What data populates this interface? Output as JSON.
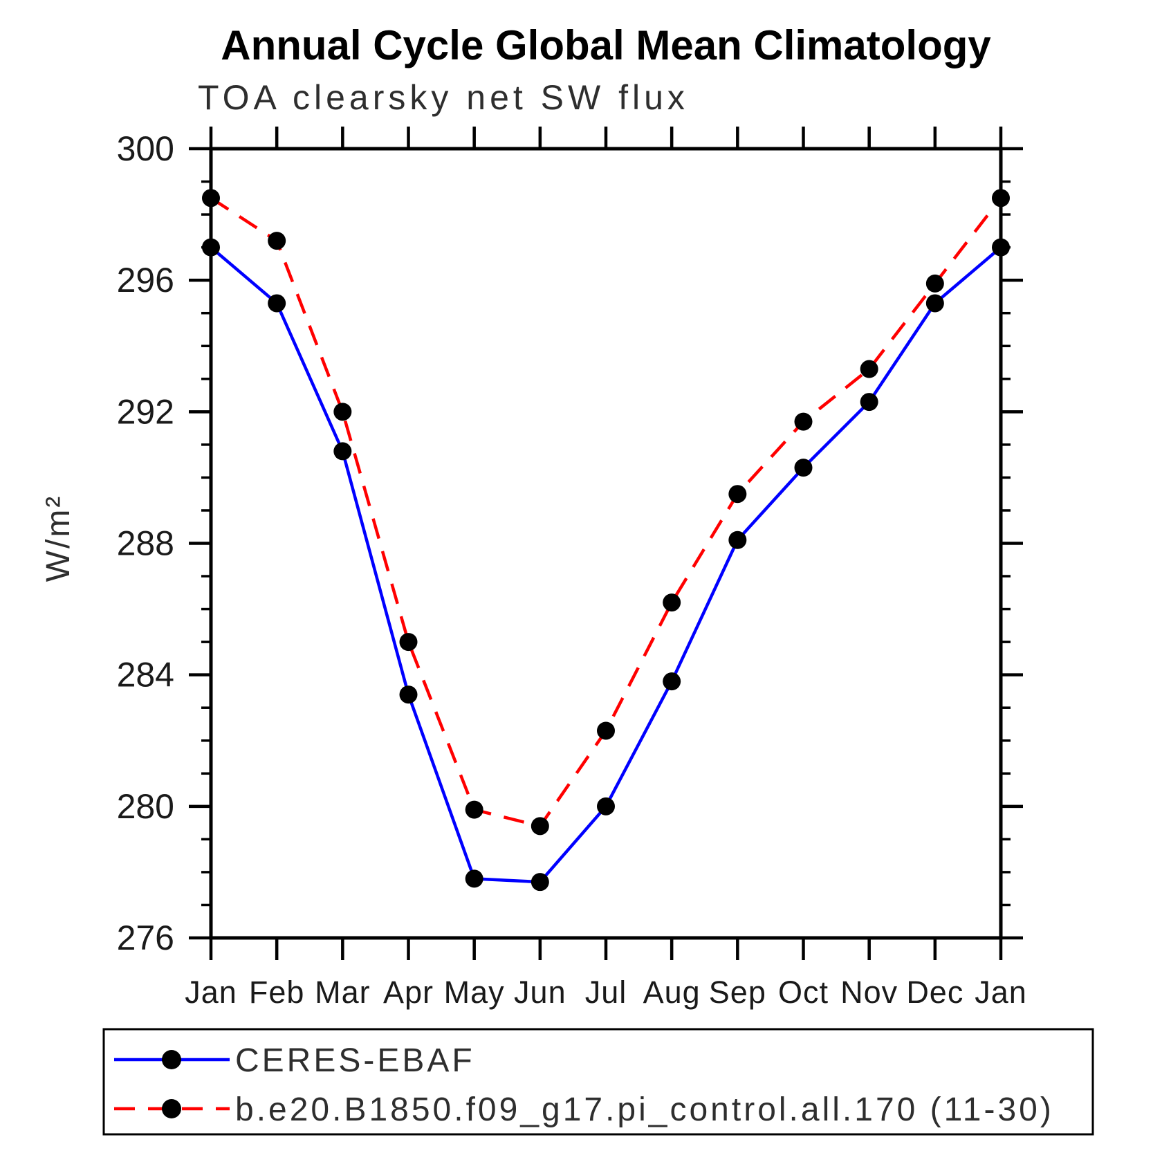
{
  "title": "Annual Cycle Global Mean Climatology",
  "subtitle": "TOA clearsky net SW flux",
  "ylabel": "W/m²",
  "chart_data": {
    "type": "line",
    "categories": [
      "Jan",
      "Feb",
      "Mar",
      "Apr",
      "May",
      "Jun",
      "Jul",
      "Aug",
      "Sep",
      "Oct",
      "Nov",
      "Dec",
      "Jan"
    ],
    "series": [
      {
        "name": "CERES-EBAF",
        "color": "#0000ff",
        "style": "solid",
        "marker": "circle",
        "values": [
          297.0,
          295.3,
          290.8,
          283.4,
          277.8,
          277.7,
          280.0,
          283.8,
          288.1,
          290.3,
          292.3,
          295.3,
          297.0
        ]
      },
      {
        "name": "b.e20.B1850.f09_g17.pi_control.all.170 (11-30)",
        "color": "#ff0000",
        "style": "dashed",
        "marker": "circle",
        "values": [
          298.5,
          297.2,
          292.0,
          285.0,
          279.9,
          279.4,
          282.3,
          286.2,
          289.5,
          291.7,
          293.3,
          295.9,
          298.5
        ]
      }
    ],
    "ylim": [
      276,
      300
    ],
    "ytick_major_step": 4,
    "ytick_minor_step": 1,
    "ytick_major_labels": [
      "276",
      "280",
      "284",
      "288",
      "292",
      "296",
      "300"
    ],
    "marker_color": "#000000",
    "axis_color": "#000000",
    "grid": "off",
    "legend_position": "bottom"
  }
}
